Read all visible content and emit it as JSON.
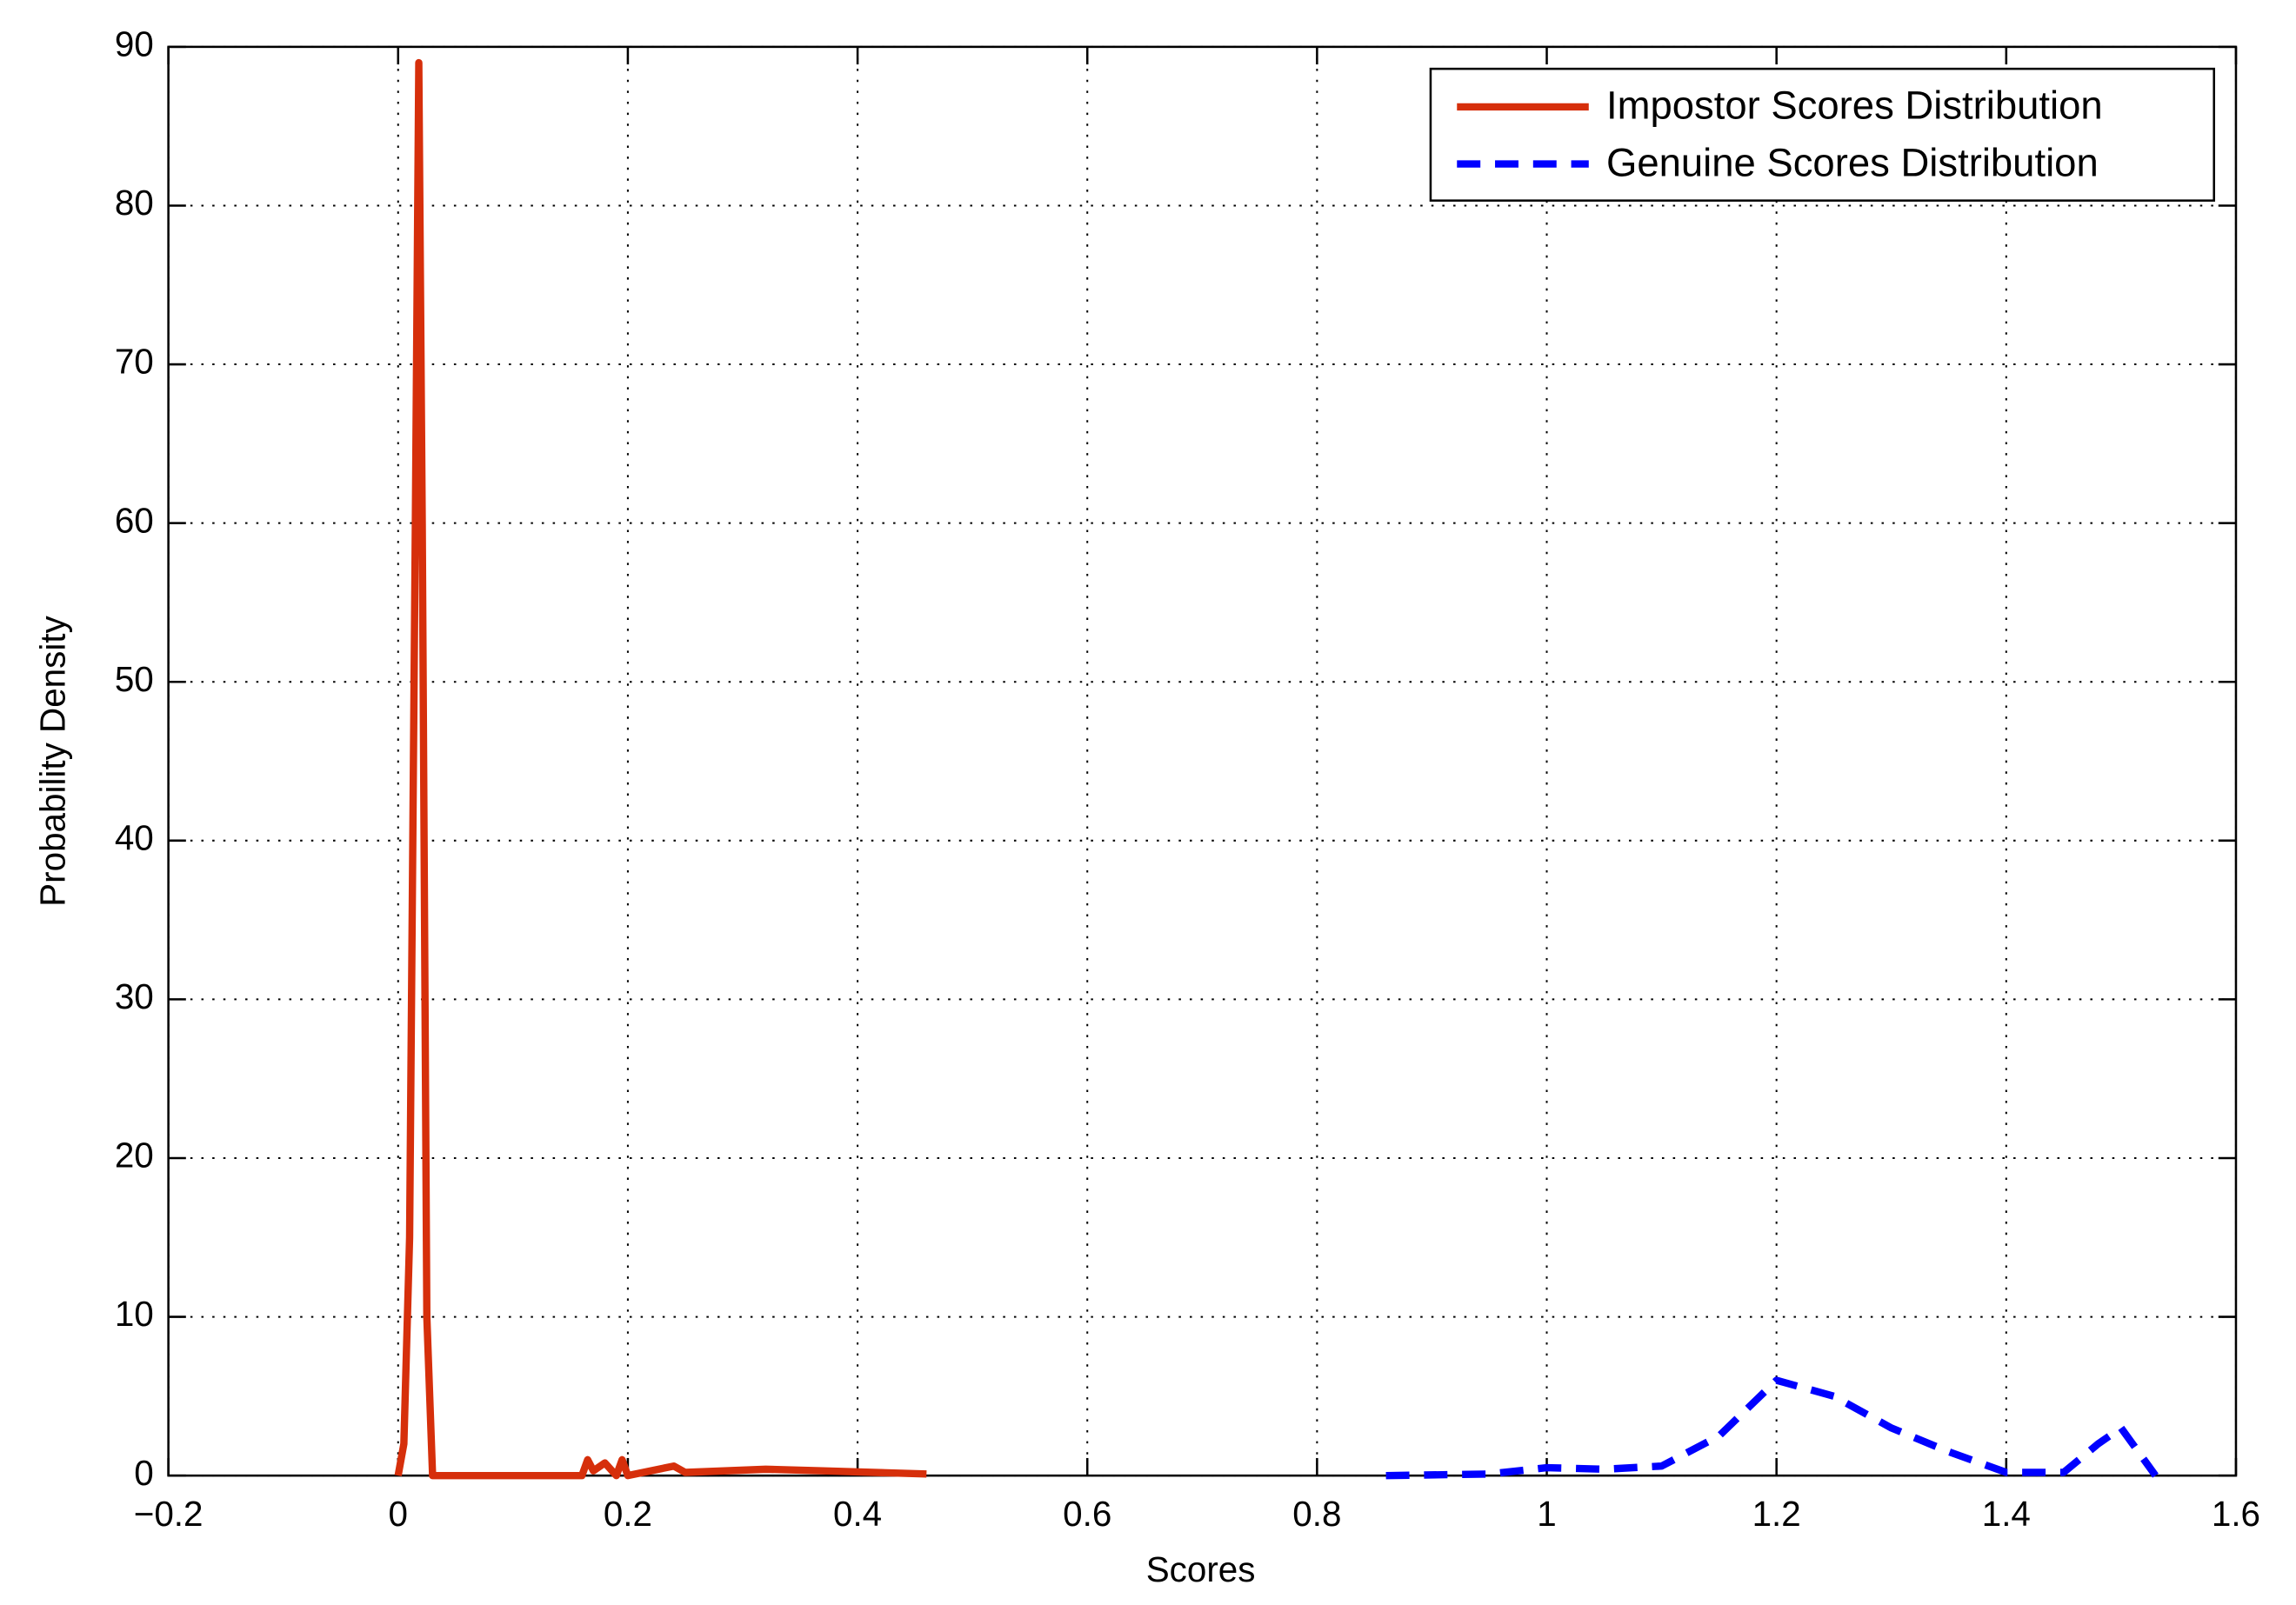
{
  "chart_data": {
    "type": "line",
    "xlabel": "Scores",
    "ylabel": "Probability Density",
    "xlim": [
      -0.2,
      1.6
    ],
    "xticks": [
      {
        "value": -0.2,
        "label": "−0.2"
      },
      0,
      0.2,
      0.4,
      0.6,
      0.8,
      1,
      1.2,
      1.4,
      1.6
    ],
    "ylim": [
      0,
      90
    ],
    "yticks": [
      0,
      10,
      20,
      30,
      40,
      50,
      60,
      70,
      80,
      90
    ],
    "grid": true,
    "legend": "upper right",
    "series": [
      {
        "name": "Impostor Scores Distribution",
        "color": "#d62f0b",
        "dash": false,
        "x": [
          0,
          0.005,
          0.01,
          0.015,
          0.018,
          0.021,
          0.025,
          0.03,
          0.1,
          0.16,
          0.165,
          0.17,
          0.18,
          0.19,
          0.195,
          0.2,
          0.24,
          0.25,
          0.32,
          0.37,
          0.46
        ],
        "values": [
          0,
          2,
          15,
          60,
          89,
          60,
          10,
          0,
          0,
          0,
          1,
          0.3,
          0.8,
          0,
          1,
          0,
          0.6,
          0.2,
          0.4,
          0.3,
          0.1
        ]
      },
      {
        "name": "Genuine Scores Distribution",
        "color": "#0000ff",
        "dash": true,
        "x": [
          0.86,
          0.95,
          1.0,
          1.05,
          1.1,
          1.15,
          1.2,
          1.25,
          1.3,
          1.35,
          1.4,
          1.45,
          1.48,
          1.5,
          1.53
        ],
        "values": [
          0,
          0.1,
          0.5,
          0.4,
          0.6,
          2.5,
          6,
          5,
          3,
          1.5,
          0.2,
          0.2,
          2,
          3,
          0
        ]
      }
    ]
  }
}
